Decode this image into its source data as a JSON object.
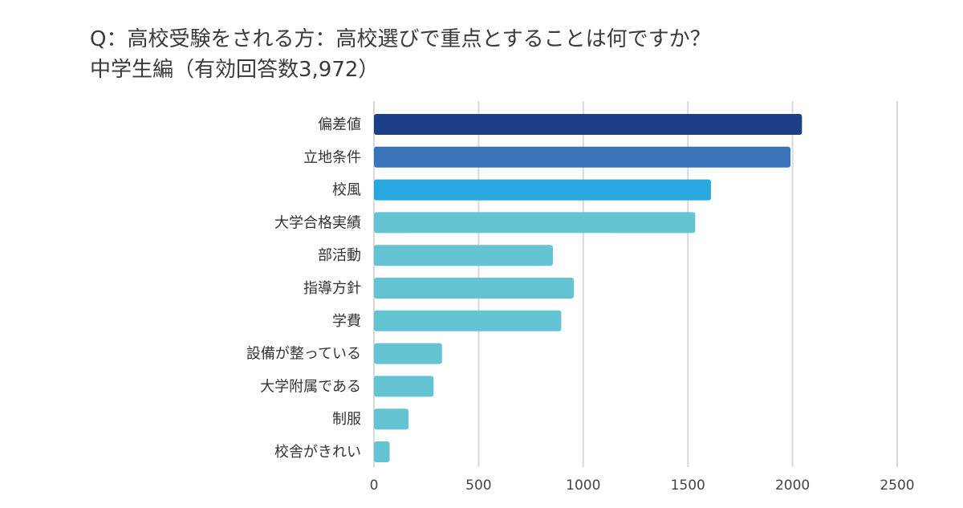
{
  "chart_data": {
    "type": "bar",
    "orientation": "horizontal",
    "title": "Q：高校受験をされる方：高校選びで重点とすることは何ですか？",
    "subtitle": "中学生編（有効回答数3,972）",
    "categories": [
      "偏差値",
      "立地条件",
      "校風",
      "大学合格実績",
      "部活動",
      "指導方針",
      "学費",
      "設備が整っている",
      "大学附属である",
      "制服",
      "校舎がきれい"
    ],
    "values": [
      2045,
      1990,
      1610,
      1535,
      855,
      955,
      895,
      325,
      285,
      165,
      75
    ],
    "bar_colors": [
      "#1c3f87",
      "#3a73b8",
      "#29a8e0",
      "#64c4d4",
      "#64c4d4",
      "#64c4d4",
      "#64c4d4",
      "#64c4d4",
      "#64c4d4",
      "#64c4d4",
      "#64c4d4"
    ],
    "xlim": [
      0,
      2500
    ],
    "xticks": [
      0,
      500,
      1000,
      1500,
      2000,
      2500
    ],
    "grid": true,
    "gridline_color": "#d9d9d9"
  }
}
